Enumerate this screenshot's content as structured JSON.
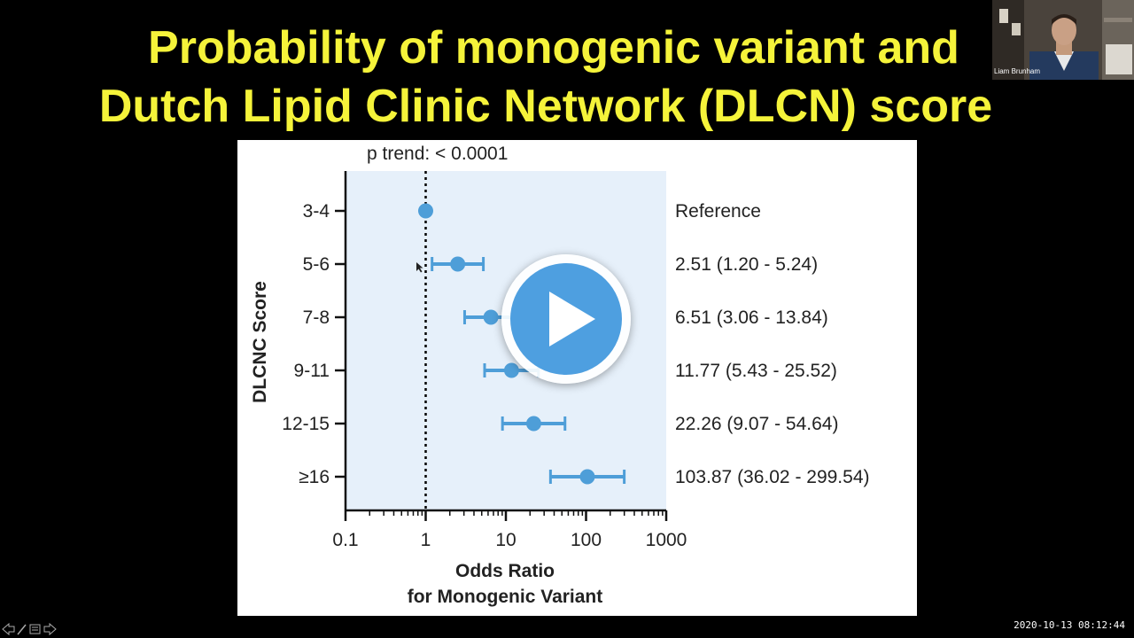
{
  "slide": {
    "title_line1": "Probability of monogenic variant and",
    "title_line2": "Dutch Lipid Clinic Network (DLCN) score"
  },
  "chart_data": {
    "type": "scatter",
    "subtype": "forest-plot",
    "annotation": "p trend: < 0.0001",
    "xlabel_line1": "Odds Ratio",
    "xlabel_line2": "for Monogenic Variant",
    "ylabel": "DLCNC Score",
    "x_scale": "log",
    "xlim": [
      0.1,
      1000
    ],
    "x_ticks": [
      0.1,
      1,
      10,
      100,
      1000
    ],
    "x_tick_labels": [
      "0.1",
      "1",
      "10",
      "100",
      "1000"
    ],
    "reference_line": 1,
    "categories": [
      "3-4",
      "5-6",
      "7-8",
      "9-11",
      "12-15",
      "≥16"
    ],
    "estimates": [
      1,
      2.51,
      6.51,
      11.77,
      22.26,
      103.87
    ],
    "ci_low": [
      null,
      1.2,
      3.06,
      5.43,
      9.07,
      36.02
    ],
    "ci_high": [
      null,
      5.24,
      13.84,
      25.52,
      54.64,
      299.54
    ],
    "value_labels": [
      "Reference",
      "2.51 (1.20 - 5.24)",
      "6.51 (3.06 - 13.84)",
      "11.77 (5.43 - 25.52)",
      "22.26 (9.07 - 54.64)",
      "103.87 (36.02 - 299.54)"
    ],
    "colors": {
      "point": "#4e9ed8",
      "band": "#e6f0fa"
    }
  },
  "webcam": {
    "name": "Liam Brunham"
  },
  "player": {
    "timestamp": "2020-10-13  08:12:44"
  }
}
